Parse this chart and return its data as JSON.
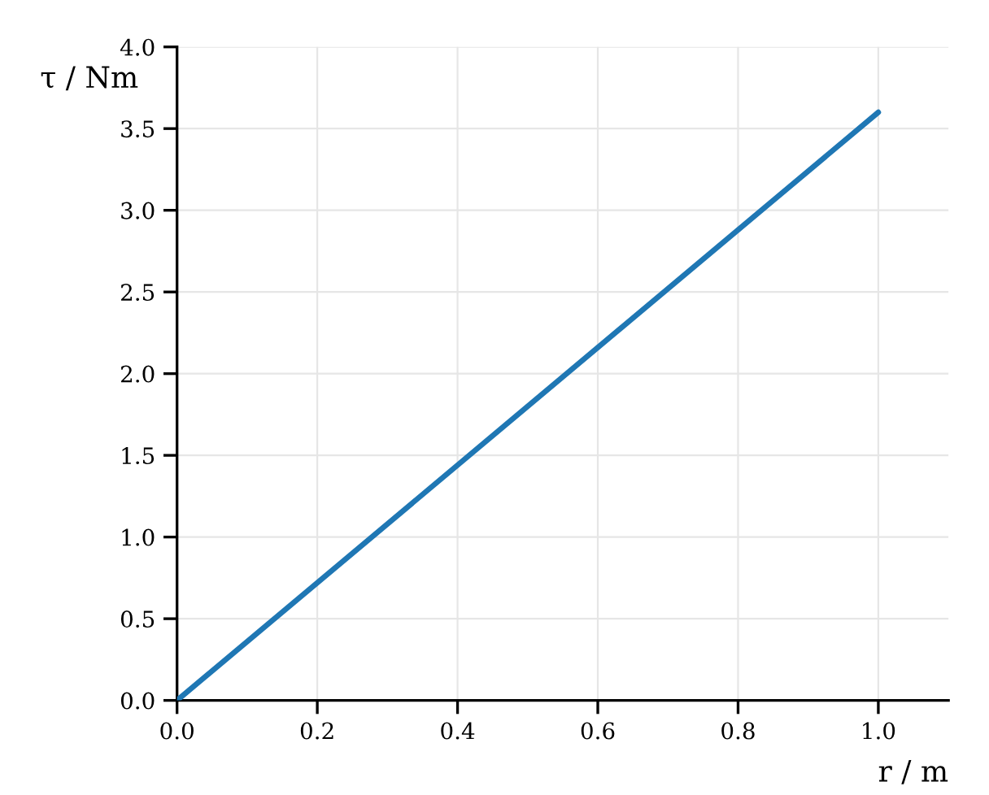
{
  "chart_data": {
    "type": "line",
    "xlabel": "r / m",
    "ylabel": "τ / Nm",
    "x": [
      0,
      1.0
    ],
    "series": [
      {
        "color": "#1f77b4",
        "values": [
          0,
          3.6
        ]
      }
    ],
    "xlim": [
      0,
      1.1
    ],
    "ylim": [
      0,
      4.0
    ],
    "xticks": [
      {
        "value": 0,
        "label": "0.0"
      },
      {
        "value": 0.2,
        "label": "0.2"
      },
      {
        "value": 0.4,
        "label": "0.4"
      },
      {
        "value": 0.6,
        "label": "0.6"
      },
      {
        "value": 0.8,
        "label": "0.8"
      },
      {
        "value": 1.0,
        "label": "1.0"
      }
    ],
    "yticks": [
      {
        "value": 0,
        "label": "0.0"
      },
      {
        "value": 0.5,
        "label": "0.5"
      },
      {
        "value": 1.0,
        "label": "1.0"
      },
      {
        "value": 1.5,
        "label": "1.5"
      },
      {
        "value": 2.0,
        "label": "2.0"
      },
      {
        "value": 2.5,
        "label": "2.5"
      },
      {
        "value": 3.0,
        "label": "3.0"
      },
      {
        "value": 3.5,
        "label": "3.5"
      },
      {
        "value": 4.0,
        "label": "4.0"
      }
    ],
    "grid": true
  }
}
